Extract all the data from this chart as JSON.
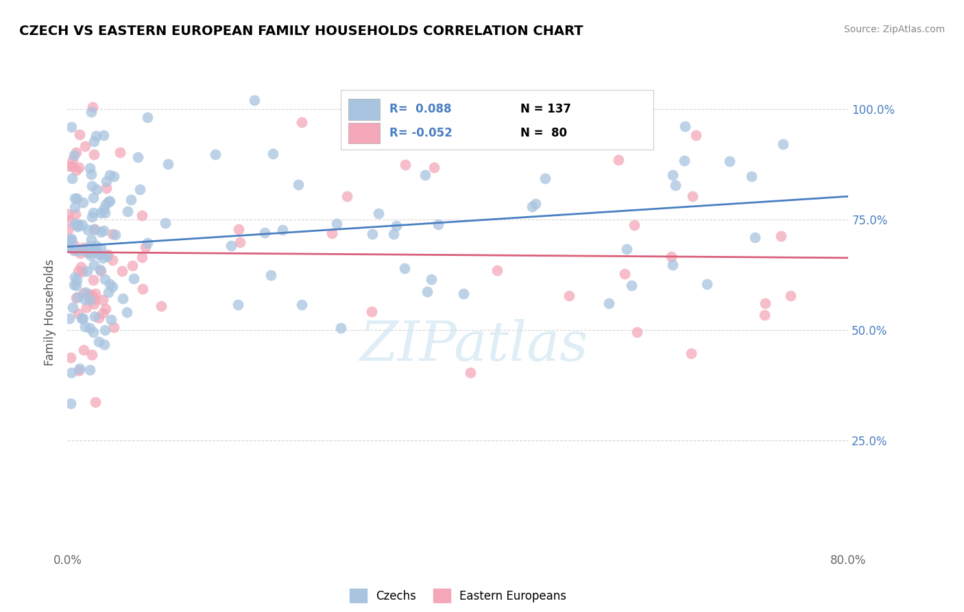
{
  "title": "CZECH VS EASTERN EUROPEAN FAMILY HOUSEHOLDS CORRELATION CHART",
  "source": "Source: ZipAtlas.com",
  "ylabel": "Family Households",
  "y_ticks": [
    0.0,
    0.25,
    0.5,
    0.75,
    1.0
  ],
  "y_tick_labels": [
    "",
    "25.0%",
    "50.0%",
    "75.0%",
    "100.0%"
  ],
  "x_lim": [
    0.0,
    0.8
  ],
  "y_lim": [
    0.0,
    1.08
  ],
  "blue_color": "#a8c4e0",
  "pink_color": "#f4a7b9",
  "blue_line_color": "#4a7fc1",
  "pink_line_color": "#d9607a",
  "ytick_color": "#4a7fc1",
  "blue_label": "Czechs",
  "pink_label": "Eastern Europeans",
  "watermark_text": "ZIPatlas",
  "watermark_color": "#c5dff0",
  "blue_seed": 12,
  "pink_seed": 77
}
